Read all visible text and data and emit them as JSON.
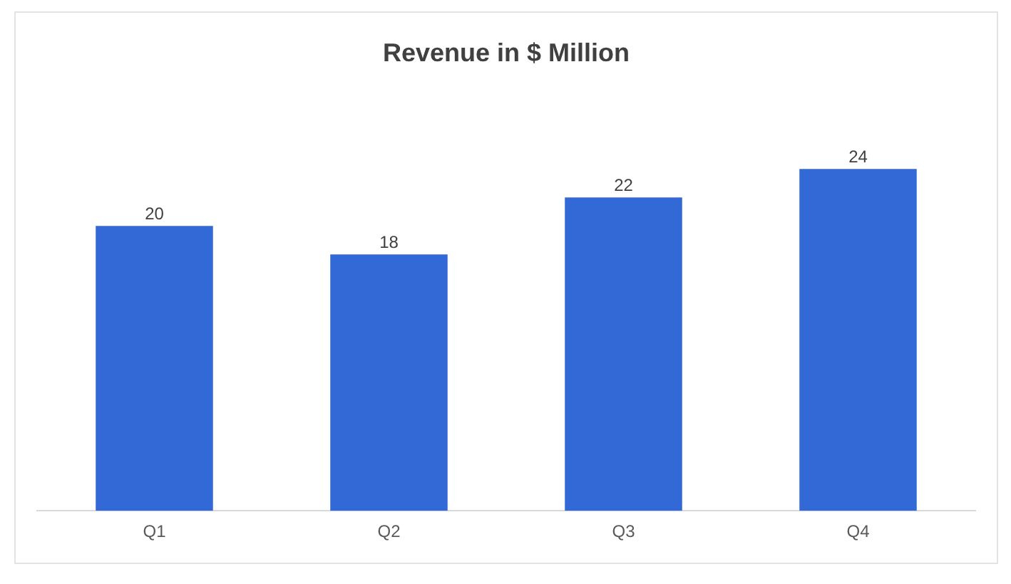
{
  "chart_data": {
    "type": "bar",
    "title": "Revenue in $ Million",
    "categories": [
      "Q1",
      "Q2",
      "Q3",
      "Q4"
    ],
    "values": [
      20,
      18,
      22,
      24
    ],
    "color": "#3369d6",
    "data_labels": true,
    "grid": false,
    "legend": false,
    "tick_labels": "x"
  }
}
